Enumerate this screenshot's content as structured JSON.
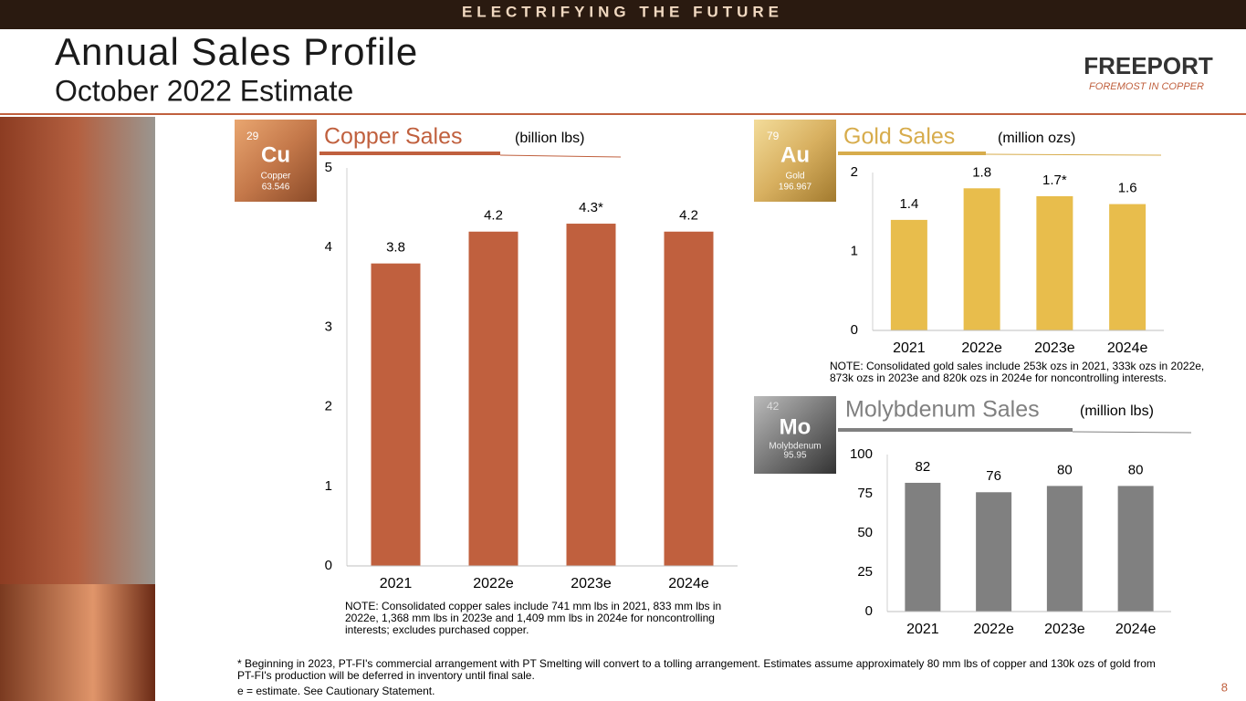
{
  "header": {
    "banner": "ELECTRIFYING THE FUTURE",
    "title": "Annual Sales Profile",
    "subtitle": "October 2022 Estimate",
    "logo": "FREEPORT",
    "logo_tagline": "FOREMOST IN COPPER"
  },
  "elements": [
    {
      "number": "29",
      "symbol": "Cu",
      "name": "Copper",
      "weight": "63.546"
    },
    {
      "number": "79",
      "symbol": "Au",
      "name": "Gold",
      "weight": "196.967"
    },
    {
      "number": "42",
      "symbol": "Mo",
      "name": "Molybdenum",
      "weight": "95.95"
    }
  ],
  "chart_data": [
    {
      "type": "bar",
      "title": "Copper Sales",
      "unit": "(billion lbs)",
      "categories": [
        "2021",
        "2022e",
        "2023e",
        "2024e"
      ],
      "values": [
        3.8,
        4.2,
        4.3,
        4.2
      ],
      "value_labels": [
        "3.8",
        "4.2",
        "4.3*",
        "4.2"
      ],
      "color": "#c0603e",
      "ylim": [
        0,
        5
      ],
      "yticks": [
        0,
        1,
        2,
        3,
        4,
        5
      ],
      "note": "NOTE: Consolidated copper sales include 741 mm lbs in 2021, 833 mm lbs in 2022e, 1,368 mm lbs in 2023e and 1,409 mm lbs in 2024e for noncontrolling interests; excludes purchased copper."
    },
    {
      "type": "bar",
      "title": "Gold Sales",
      "unit": "(million ozs)",
      "categories": [
        "2021",
        "2022e",
        "2023e",
        "2024e"
      ],
      "values": [
        1.4,
        1.8,
        1.7,
        1.6
      ],
      "value_labels": [
        "1.4",
        "1.8",
        "1.7*",
        "1.6"
      ],
      "color": "#e8bd4c",
      "ylim": [
        0,
        2
      ],
      "yticks": [
        0,
        1,
        2
      ],
      "note": "NOTE: Consolidated gold sales include 253k ozs in 2021, 333k ozs in 2022e, 873k ozs in 2023e and 820k ozs in 2024e for noncontrolling interests."
    },
    {
      "type": "bar",
      "title": "Molybdenum Sales",
      "unit": "(million lbs)",
      "categories": [
        "2021",
        "2022e",
        "2023e",
        "2024e"
      ],
      "values": [
        82,
        76,
        80,
        80
      ],
      "color": "#808080",
      "ylim": [
        0,
        100
      ],
      "yticks": [
        0,
        25,
        50,
        75,
        100
      ]
    }
  ],
  "footnote": {
    "asterisk": "* Beginning in 2023, PT-FI's commercial arrangement with PT Smelting will convert to a tolling arrangement. Estimates assume approximately 80 mm lbs of copper and 130k ozs of gold from PT-FI's production will be deferred in inventory until final sale.",
    "estimate": "e = estimate. See Cautionary Statement.",
    "page": "8"
  }
}
